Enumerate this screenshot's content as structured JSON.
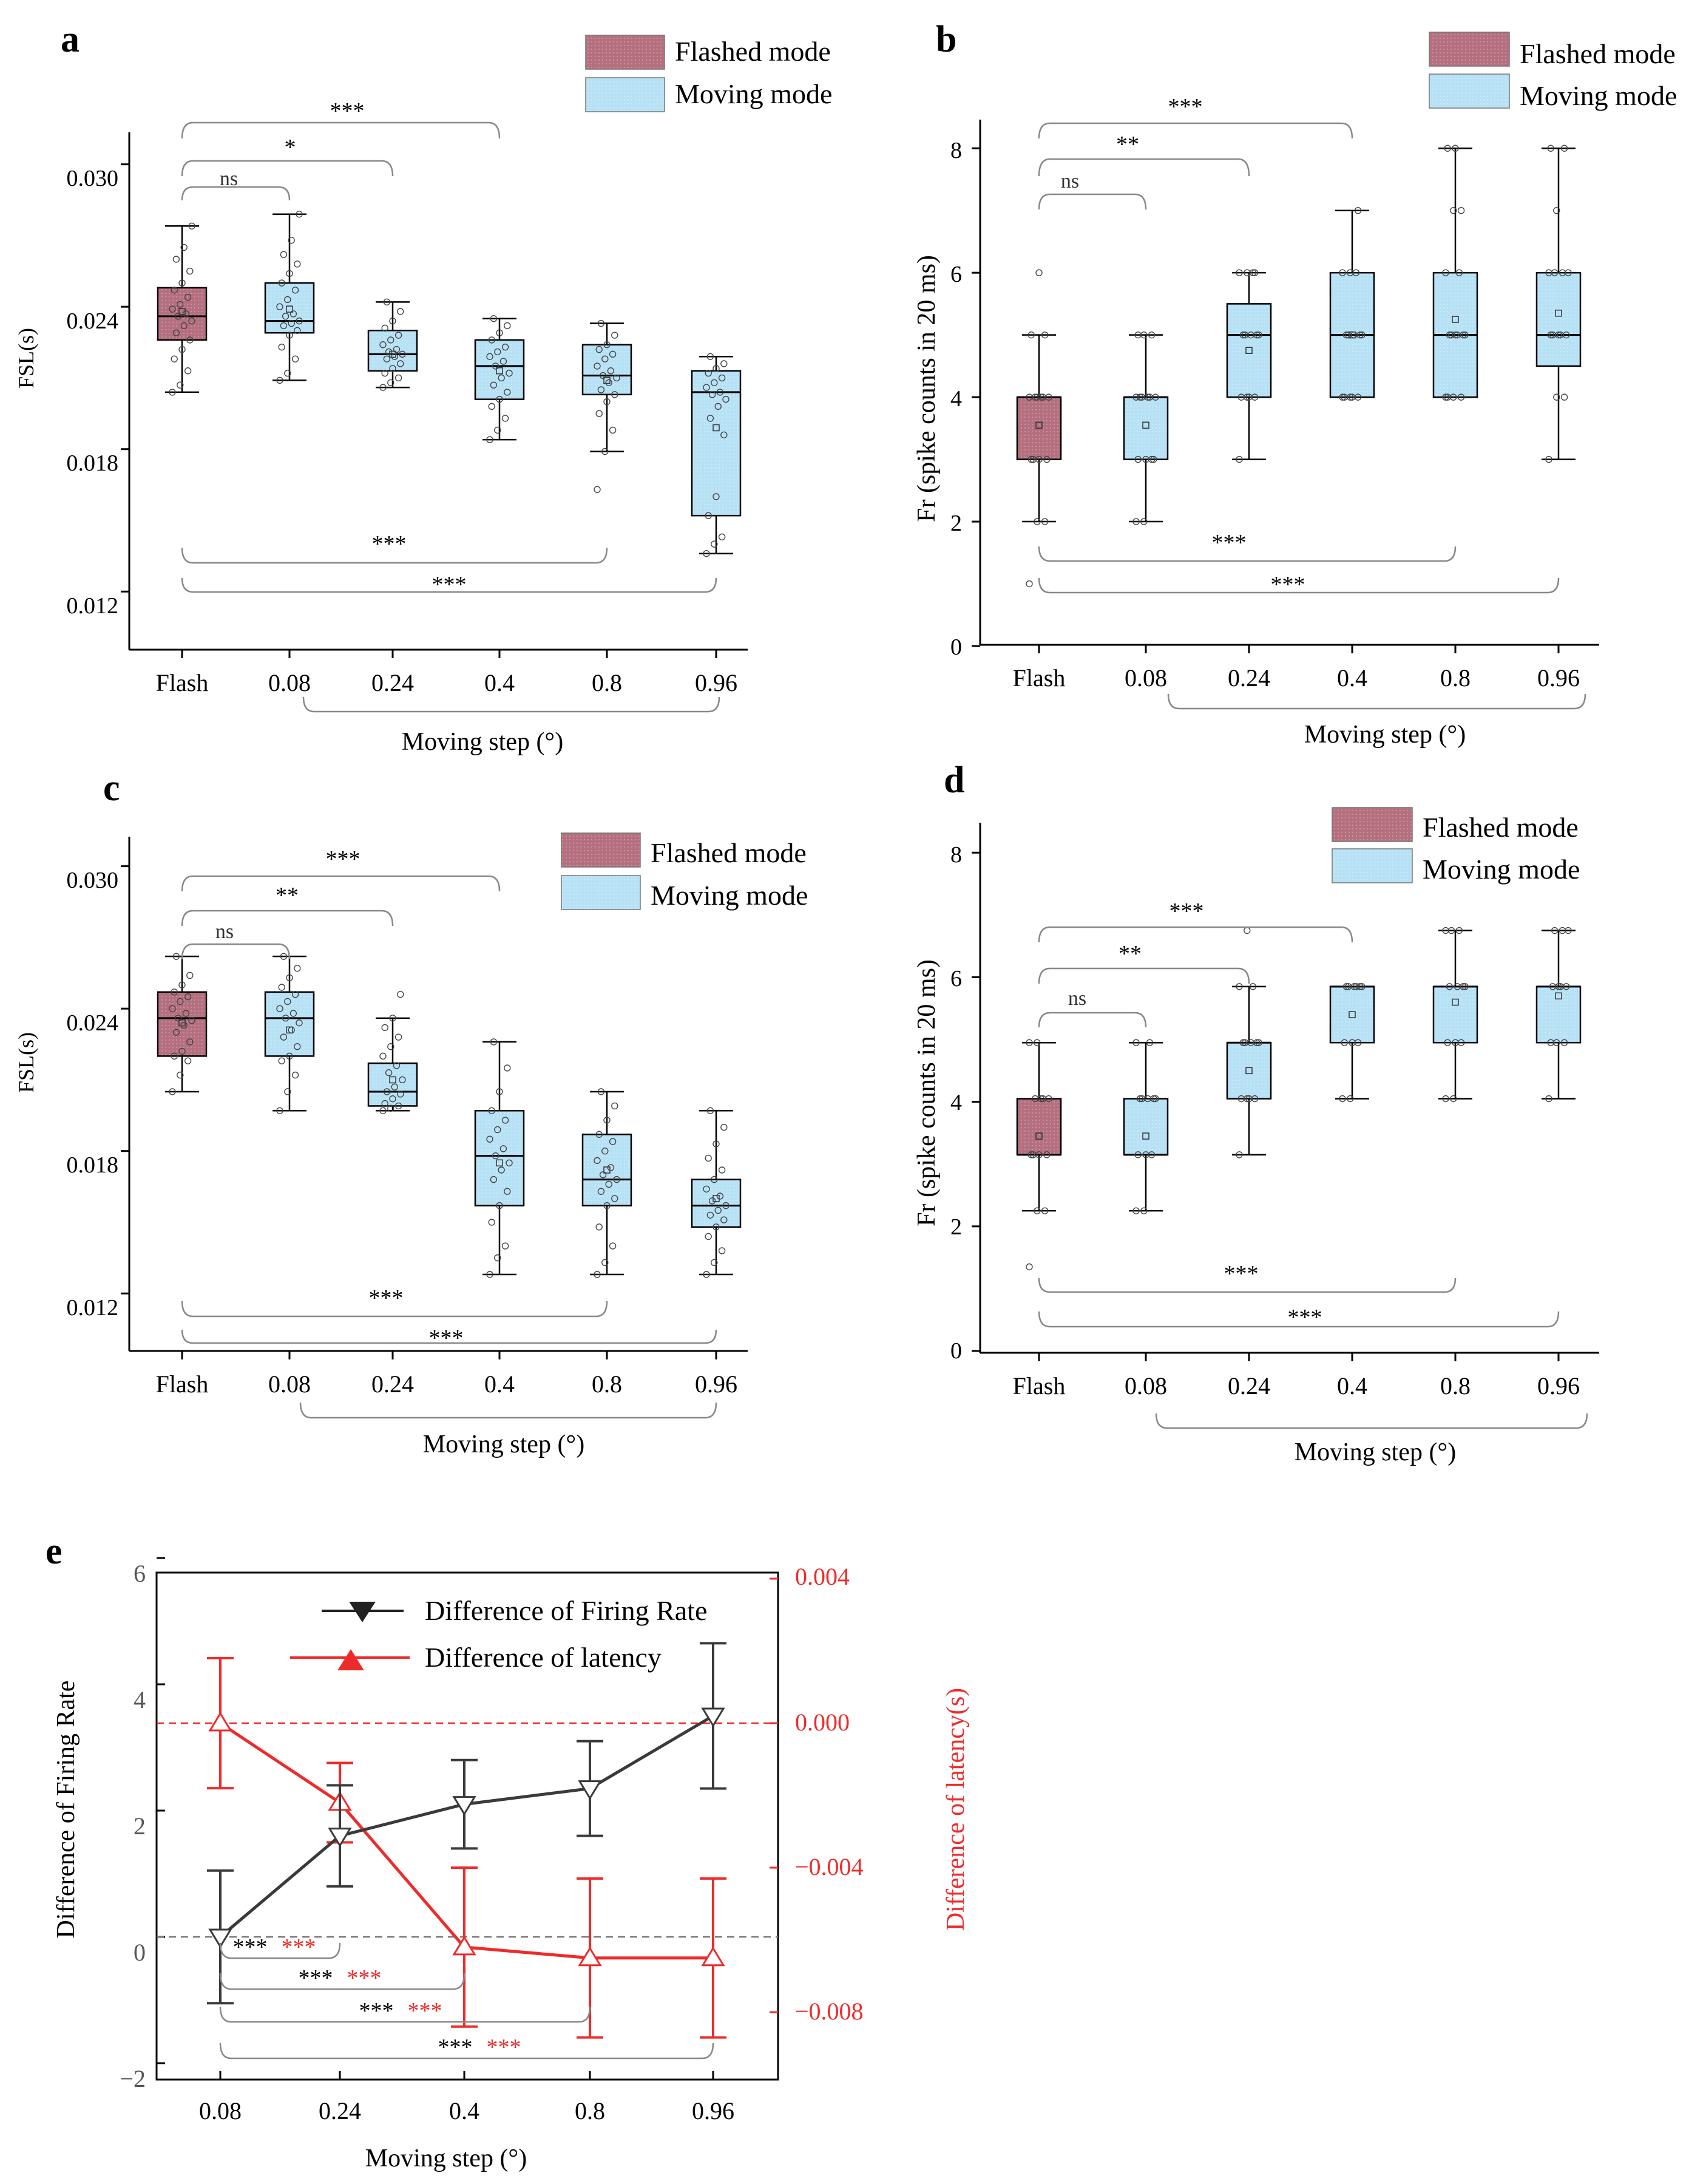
{
  "colors": {
    "flash": "#b07080",
    "moving": "#b8e2f6",
    "red": "#ee2b2b",
    "dark": "#3a3a3a"
  },
  "panels": [
    {
      "letter": "a",
      "ylabel": "FSL(s)",
      "xlabel": "Moving step (°)",
      "yticks": [
        "0.030",
        "0.024",
        "0.018",
        "0.012"
      ],
      "legend": [
        "Flashed mode",
        "Moving mode"
      ],
      "sig_top": [
        "ns",
        "*",
        "***"
      ],
      "sig_bottom": [
        "***",
        "***"
      ]
    },
    {
      "letter": "b",
      "ylabel": "Fr (spike counts in 20 ms)",
      "xlabel": "Moving step (°)",
      "yticks": [
        "8",
        "6",
        "4",
        "2",
        "0"
      ],
      "legend": [
        "Flashed mode",
        "Moving mode"
      ],
      "sig_top": [
        "ns",
        "**",
        "***"
      ],
      "sig_bottom": [
        "***",
        "***"
      ]
    },
    {
      "letter": "c",
      "ylabel": "FSL(s)",
      "xlabel": "Moving step (°)",
      "yticks": [
        "0.030",
        "0.024",
        "0.018",
        "0.012"
      ],
      "legend": [
        "Flashed mode",
        "Moving mode"
      ],
      "sig_top": [
        "ns",
        "**",
        "***"
      ],
      "sig_bottom": [
        "***",
        "***"
      ]
    },
    {
      "letter": "d",
      "ylabel": "Fr (spike counts in 20 ms)",
      "xlabel": "Moving step (°)",
      "yticks": [
        "8",
        "6",
        "4",
        "2",
        "0"
      ],
      "legend": [
        "Flashed mode",
        "Moving mode"
      ],
      "sig_top": [
        "ns",
        "**",
        "***"
      ],
      "sig_bottom": [
        "***",
        "***"
      ]
    }
  ],
  "panel_e": {
    "letter": "e",
    "ylabel_left": "Difference of Firing Rate",
    "ylabel_right": "Difference of latency(s)",
    "xlabel": "Moving step (°)",
    "yticks_left": [
      "6",
      "4",
      "2",
      "0",
      "−2"
    ],
    "yticks_right": [
      "0.004",
      "0.000",
      "−0.004",
      "−0.008"
    ],
    "legend": [
      "Difference of Firing Rate",
      "Difference of latency"
    ],
    "sig": [
      "***",
      "***"
    ]
  },
  "chart_data": [
    {
      "panel": "a",
      "type": "box",
      "title": "",
      "xlabel": "Moving step (°)",
      "ylabel": "FSL(s)",
      "categories": [
        "Flash",
        "0.08",
        "0.24",
        "0.4",
        "0.8",
        "0.96"
      ],
      "ylim": [
        0.0095,
        0.0315
      ],
      "series": [
        {
          "name": "Flash",
          "mode": "Flashed mode",
          "whisker_low": 0.0204,
          "q1": 0.0226,
          "median": 0.0236,
          "q3": 0.0248,
          "whisker_high": 0.0274,
          "mean": 0.0238,
          "points": [
            0.0204,
            0.0207,
            0.0213,
            0.0218,
            0.0222,
            0.0226,
            0.0229,
            0.0232,
            0.0234,
            0.0236,
            0.0237,
            0.0239,
            0.0241,
            0.0244,
            0.0247,
            0.025,
            0.0255,
            0.026,
            0.0265,
            0.0274
          ]
        },
        {
          "name": "0.08",
          "mode": "Moving mode",
          "whisker_low": 0.0209,
          "q1": 0.0229,
          "median": 0.0234,
          "q3": 0.025,
          "whisker_high": 0.0279,
          "mean": 0.0239,
          "points": [
            0.0209,
            0.0212,
            0.0218,
            0.0223,
            0.0228,
            0.023,
            0.0232,
            0.0233,
            0.0234,
            0.0236,
            0.0237,
            0.024,
            0.0243,
            0.0247,
            0.025,
            0.0254,
            0.0258,
            0.0262,
            0.0268,
            0.0279
          ]
        },
        {
          "name": "0.24",
          "mode": "Moving mode",
          "whisker_low": 0.0206,
          "q1": 0.0213,
          "median": 0.022,
          "q3": 0.023,
          "whisker_high": 0.0242,
          "mean": 0.022,
          "points": [
            0.0206,
            0.0208,
            0.021,
            0.0212,
            0.0214,
            0.0216,
            0.0218,
            0.0219,
            0.022,
            0.0221,
            0.0222,
            0.0224,
            0.0226,
            0.0228,
            0.0231,
            0.0234,
            0.0238,
            0.0242
          ]
        },
        {
          "name": "0.4",
          "mode": "Moving mode",
          "whisker_low": 0.0184,
          "q1": 0.0201,
          "median": 0.0215,
          "q3": 0.0226,
          "whisker_high": 0.0235,
          "mean": 0.0213,
          "points": [
            0.0184,
            0.0188,
            0.0193,
            0.0198,
            0.0201,
            0.0204,
            0.0207,
            0.021,
            0.0212,
            0.0215,
            0.0217,
            0.0219,
            0.0221,
            0.0223,
            0.0226,
            0.0229,
            0.0232,
            0.0235
          ]
        },
        {
          "name": "0.8",
          "mode": "Moving mode",
          "whisker_low": 0.0179,
          "q1": 0.0203,
          "median": 0.0211,
          "q3": 0.0224,
          "whisker_high": 0.0233,
          "mean": 0.0209,
          "points": [
            0.0163,
            0.0179,
            0.0188,
            0.0195,
            0.02,
            0.0203,
            0.0205,
            0.0208,
            0.021,
            0.0211,
            0.0213,
            0.0215,
            0.0218,
            0.022,
            0.0222,
            0.0224,
            0.0228,
            0.0233
          ]
        },
        {
          "name": "0.96",
          "mode": "Moving mode",
          "whisker_low": 0.0136,
          "q1": 0.0152,
          "median": 0.0204,
          "q3": 0.0213,
          "whisker_high": 0.0219,
          "mean": 0.0189,
          "points": [
            0.0136,
            0.014,
            0.0143,
            0.0152,
            0.016,
            0.0186,
            0.0193,
            0.0198,
            0.0201,
            0.0203,
            0.0204,
            0.0206,
            0.0208,
            0.021,
            0.0212,
            0.0214,
            0.0216,
            0.0219
          ]
        }
      ]
    },
    {
      "panel": "b",
      "type": "box",
      "title": "",
      "xlabel": "Moving step (°)",
      "ylabel": "Fr (spike counts in 20 ms)",
      "categories": [
        "Flash",
        "0.08",
        "0.24",
        "0.4",
        "0.8",
        "0.96"
      ],
      "ylim": [
        0,
        8.5
      ],
      "series": [
        {
          "name": "Flash",
          "mode": "Flashed mode",
          "whisker_low": 2,
          "q1": 3,
          "median": 4,
          "q3": 4,
          "whisker_high": 5,
          "mean": 3.55,
          "points": [
            1,
            2,
            2,
            3,
            3,
            3,
            3,
            4,
            4,
            4,
            4,
            4,
            4,
            5,
            5,
            6
          ]
        },
        {
          "name": "0.08",
          "mode": "Moving mode",
          "whisker_low": 2,
          "q1": 3,
          "median": 4,
          "q3": 4,
          "whisker_high": 5,
          "mean": 3.55,
          "points": [
            2,
            2,
            3,
            3,
            3,
            3,
            4,
            4,
            4,
            4,
            4,
            4,
            5,
            5,
            5
          ]
        },
        {
          "name": "0.24",
          "mode": "Moving mode",
          "whisker_low": 3,
          "q1": 4,
          "median": 5,
          "q3": 5.5,
          "whisker_high": 6,
          "mean": 4.75,
          "points": [
            3,
            4,
            4,
            4,
            4,
            5,
            5,
            5,
            5,
            5,
            6,
            6,
            6,
            6
          ]
        },
        {
          "name": "0.4",
          "mode": "Moving mode",
          "whisker_low": 4,
          "q1": 4,
          "median": 5,
          "q3": 6,
          "whisker_high": 7,
          "mean": 5.0,
          "points": [
            4,
            4,
            4,
            4,
            4,
            5,
            5,
            5,
            5,
            5,
            6,
            6,
            6,
            7
          ]
        },
        {
          "name": "0.8",
          "mode": "Moving mode",
          "whisker_low": 4,
          "q1": 4,
          "median": 5,
          "q3": 6,
          "whisker_high": 8,
          "mean": 5.25,
          "points": [
            4,
            4,
            4,
            4,
            5,
            5,
            5,
            5,
            5,
            5,
            6,
            6,
            7,
            7,
            8,
            8
          ]
        },
        {
          "name": "0.96",
          "mode": "Moving mode",
          "whisker_low": 3,
          "q1": 4.5,
          "median": 5,
          "q3": 6,
          "whisker_high": 8,
          "mean": 5.35,
          "points": [
            3,
            4,
            4,
            5,
            5,
            5,
            5,
            5,
            6,
            6,
            6,
            6,
            7,
            8,
            8
          ]
        }
      ]
    },
    {
      "panel": "c",
      "type": "box",
      "title": "",
      "xlabel": "Moving step (°)",
      "ylabel": "FSL(s)",
      "categories": [
        "Flash",
        "0.08",
        "0.24",
        "0.4",
        "0.8",
        "0.96"
      ],
      "ylim": [
        0.0095,
        0.0315
      ],
      "series": [
        {
          "name": "Flash",
          "mode": "Flashed mode",
          "whisker_low": 0.0205,
          "q1": 0.022,
          "median": 0.0236,
          "q3": 0.0247,
          "whisker_high": 0.0262,
          "mean": 0.0234,
          "points": [
            0.0205,
            0.0212,
            0.0218,
            0.022,
            0.0222,
            0.0226,
            0.023,
            0.0233,
            0.0235,
            0.0236,
            0.0238,
            0.024,
            0.0243,
            0.0245,
            0.0247,
            0.025,
            0.0254,
            0.0262
          ]
        },
        {
          "name": "0.08",
          "mode": "Moving mode",
          "whisker_low": 0.0197,
          "q1": 0.022,
          "median": 0.0236,
          "q3": 0.0247,
          "whisker_high": 0.0262,
          "mean": 0.0231,
          "points": [
            0.0197,
            0.0205,
            0.0212,
            0.0218,
            0.022,
            0.0224,
            0.0228,
            0.0231,
            0.0234,
            0.0236,
            0.0238,
            0.024,
            0.0243,
            0.0246,
            0.0249,
            0.0253,
            0.0257,
            0.0262
          ]
        },
        {
          "name": "0.24",
          "mode": "Moving mode",
          "whisker_low": 0.0197,
          "q1": 0.0199,
          "median": 0.0205,
          "q3": 0.0217,
          "whisker_high": 0.0236,
          "mean": 0.021,
          "points": [
            0.0197,
            0.0198,
            0.0199,
            0.02,
            0.0202,
            0.0204,
            0.0205,
            0.0207,
            0.021,
            0.0213,
            0.0216,
            0.022,
            0.0224,
            0.0228,
            0.0232,
            0.0236,
            0.0246
          ]
        },
        {
          "name": "0.4",
          "mode": "Moving mode",
          "whisker_low": 0.0128,
          "q1": 0.0157,
          "median": 0.0178,
          "q3": 0.0197,
          "whisker_high": 0.0226,
          "mean": 0.0175,
          "points": [
            0.0128,
            0.0135,
            0.014,
            0.015,
            0.0157,
            0.0163,
            0.0168,
            0.0172,
            0.0175,
            0.0178,
            0.0181,
            0.0185,
            0.0189,
            0.0193,
            0.0197,
            0.0205,
            0.0215,
            0.0226
          ]
        },
        {
          "name": "0.8",
          "mode": "Moving mode",
          "whisker_low": 0.0128,
          "q1": 0.0157,
          "median": 0.0168,
          "q3": 0.0187,
          "whisker_high": 0.0205,
          "mean": 0.0172,
          "points": [
            0.0128,
            0.0133,
            0.014,
            0.0148,
            0.0157,
            0.016,
            0.0163,
            0.0166,
            0.0168,
            0.017,
            0.0173,
            0.0176,
            0.018,
            0.0184,
            0.0187,
            0.0193,
            0.0199,
            0.0205
          ]
        },
        {
          "name": "0.96",
          "mode": "Moving mode",
          "whisker_low": 0.0128,
          "q1": 0.0148,
          "median": 0.0157,
          "q3": 0.0168,
          "whisker_high": 0.0197,
          "mean": 0.016,
          "points": [
            0.0128,
            0.0133,
            0.0138,
            0.0144,
            0.0148,
            0.0151,
            0.0153,
            0.0155,
            0.0157,
            0.0159,
            0.0161,
            0.0164,
            0.0168,
            0.0172,
            0.0177,
            0.0183,
            0.019,
            0.0197
          ]
        }
      ]
    },
    {
      "panel": "d",
      "type": "box",
      "title": "",
      "xlabel": "Moving step (°)",
      "ylabel": "Fr (spike counts in 20 ms)",
      "categories": [
        "Flash",
        "0.08",
        "0.24",
        "0.4",
        "0.8",
        "0.96"
      ],
      "ylim": [
        0,
        8.5
      ],
      "series": [
        {
          "name": "Flash",
          "mode": "Flashed mode",
          "whisker_low": 2.25,
          "q1": 3.15,
          "median": 3.15,
          "q3": 4.05,
          "whisker_high": 4.95,
          "mean": 3.45,
          "points": [
            1.35,
            2.25,
            2.25,
            3.15,
            3.15,
            3.15,
            3.15,
            4.05,
            4.05,
            4.05,
            4.05,
            4.95,
            4.95
          ]
        },
        {
          "name": "0.08",
          "mode": "Moving mode",
          "whisker_low": 2.25,
          "q1": 3.15,
          "median": 3.15,
          "q3": 4.05,
          "whisker_high": 4.95,
          "mean": 3.45,
          "points": [
            2.25,
            2.25,
            3.15,
            3.15,
            3.15,
            4.05,
            4.05,
            4.05,
            4.05,
            4.05,
            4.95,
            4.95
          ]
        },
        {
          "name": "0.24",
          "mode": "Moving mode",
          "whisker_low": 3.15,
          "q1": 4.05,
          "median": 4.95,
          "q3": 4.95,
          "whisker_high": 5.85,
          "mean": 4.5,
          "points": [
            3.15,
            4.05,
            4.05,
            4.05,
            4.05,
            4.95,
            4.95,
            4.95,
            4.95,
            4.95,
            5.85,
            5.85,
            6.75
          ]
        },
        {
          "name": "0.4",
          "mode": "Moving mode",
          "whisker_low": 4.05,
          "q1": 4.95,
          "median": 5.85,
          "q3": 5.85,
          "whisker_high": 5.85,
          "mean": 5.4,
          "points": [
            4.05,
            4.05,
            4.95,
            4.95,
            4.95,
            5.85,
            5.85,
            5.85,
            5.85,
            5.85,
            5.85
          ]
        },
        {
          "name": "0.8",
          "mode": "Moving mode",
          "whisker_low": 4.05,
          "q1": 4.95,
          "median": 5.85,
          "q3": 5.85,
          "whisker_high": 6.75,
          "mean": 5.6,
          "points": [
            4.05,
            4.05,
            4.95,
            4.95,
            4.95,
            5.85,
            5.85,
            5.85,
            5.85,
            6.75,
            6.75,
            6.75
          ]
        },
        {
          "name": "0.96",
          "mode": "Moving mode",
          "whisker_low": 4.05,
          "q1": 4.95,
          "median": 5.85,
          "q3": 5.85,
          "whisker_high": 6.75,
          "mean": 5.7,
          "points": [
            4.05,
            4.95,
            4.95,
            4.95,
            5.85,
            5.85,
            5.85,
            5.85,
            6.75,
            6.75,
            6.75
          ]
        }
      ]
    },
    {
      "panel": "e",
      "type": "line",
      "title": "",
      "xlabel": "Moving step (°)",
      "x": [
        "0.08",
        "0.24",
        "0.4",
        "0.8",
        "0.96"
      ],
      "ylabel": "Difference of Firing Rate",
      "y2label": "Difference of latency(s)",
      "ylim": [
        -2,
        6
      ],
      "y2lim": [
        -0.0104,
        0.004
      ],
      "series": [
        {
          "name": "Difference of Firing Rate",
          "axis": "left",
          "values": [
            0.0,
            1.6,
            2.1,
            2.35,
            3.5
          ],
          "err": [
            1.05,
            0.8,
            0.7,
            0.75,
            1.15
          ]
        },
        {
          "name": "Difference of latency",
          "axis": "right",
          "values": [
            0.0,
            -0.0022,
            -0.0062,
            -0.0065,
            -0.0065
          ],
          "err": [
            0.0018,
            0.0011,
            0.0022,
            0.0022,
            0.0022
          ]
        }
      ],
      "ref_lines": [
        {
          "axis": "left",
          "value": 0
        },
        {
          "axis": "right",
          "value": 0.0
        }
      ]
    }
  ]
}
